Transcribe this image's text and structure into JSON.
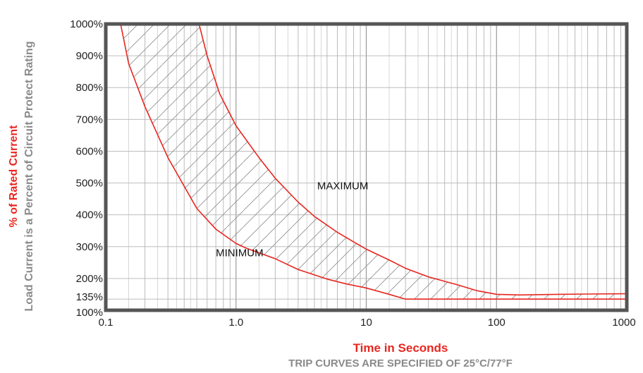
{
  "chart_data": {
    "type": "line",
    "xscale": "log",
    "xlim": [
      0.1,
      1000
    ],
    "ylim": [
      100,
      1000
    ],
    "xticks": [
      {
        "value": 0.1,
        "label": "0.1"
      },
      {
        "value": 1,
        "label": "1.0"
      },
      {
        "value": 10,
        "label": "10"
      },
      {
        "value": 100,
        "label": "100"
      },
      {
        "value": 1000,
        "label": "1000"
      }
    ],
    "yticks": [
      {
        "value": 1000,
        "label": "1000%"
      },
      {
        "value": 900,
        "label": "900%"
      },
      {
        "value": 800,
        "label": "800%"
      },
      {
        "value": 700,
        "label": "700%"
      },
      {
        "value": 600,
        "label": "600%"
      },
      {
        "value": 500,
        "label": "500%"
      },
      {
        "value": 400,
        "label": "400%"
      },
      {
        "value": 300,
        "label": "300%"
      },
      {
        "value": 200,
        "label": "200%"
      },
      {
        "value": 135,
        "label": "135%"
      },
      {
        "value": 100,
        "label": "100%"
      }
    ],
    "xlabel": "Time in Seconds",
    "ylabel_primary": "% of Rated Current",
    "ylabel_secondary": "Load Current is a Percent of Circuit Protect Rating",
    "caption": "TRIP CURVES ARE SPECIFIED OF 25°C/77°F",
    "grid": true,
    "band_hatched": true,
    "series": [
      {
        "name": "MAXIMUM",
        "color": "#e8261f",
        "points": [
          [
            0.52,
            1000
          ],
          [
            0.6,
            900
          ],
          [
            0.75,
            780
          ],
          [
            1.0,
            680
          ],
          [
            1.5,
            580
          ],
          [
            2.0,
            515
          ],
          [
            3.0,
            440
          ],
          [
            4.0,
            395
          ],
          [
            6.0,
            345
          ],
          [
            8.0,
            315
          ],
          [
            10.0,
            292
          ],
          [
            15.0,
            258
          ],
          [
            20.0,
            232
          ],
          [
            30.0,
            205
          ],
          [
            50.0,
            180
          ],
          [
            70.0,
            162
          ],
          [
            100.0,
            150
          ],
          [
            150.0,
            148
          ],
          [
            300.0,
            150
          ],
          [
            500.0,
            151
          ],
          [
            1000.0,
            152
          ]
        ]
      },
      {
        "name": "MINIMUM",
        "color": "#e8261f",
        "points": [
          [
            0.13,
            1000
          ],
          [
            0.15,
            875
          ],
          [
            0.2,
            740
          ],
          [
            0.3,
            580
          ],
          [
            0.5,
            420
          ],
          [
            0.7,
            355
          ],
          [
            1.0,
            310
          ],
          [
            1.2,
            295
          ],
          [
            2.0,
            262
          ],
          [
            3.0,
            228
          ],
          [
            5.0,
            198
          ],
          [
            7.0,
            183
          ],
          [
            10.0,
            170
          ],
          [
            15.0,
            150
          ],
          [
            20.0,
            135
          ],
          [
            50.0,
            135
          ],
          [
            100.0,
            135
          ],
          [
            300.0,
            135
          ],
          [
            1000.0,
            135
          ]
        ]
      }
    ],
    "annotations": [
      {
        "text": "MAXIMUM",
        "x": 4.2,
        "y": 480
      },
      {
        "text": "MINIMUM",
        "x": 0.7,
        "y": 270
      }
    ]
  }
}
